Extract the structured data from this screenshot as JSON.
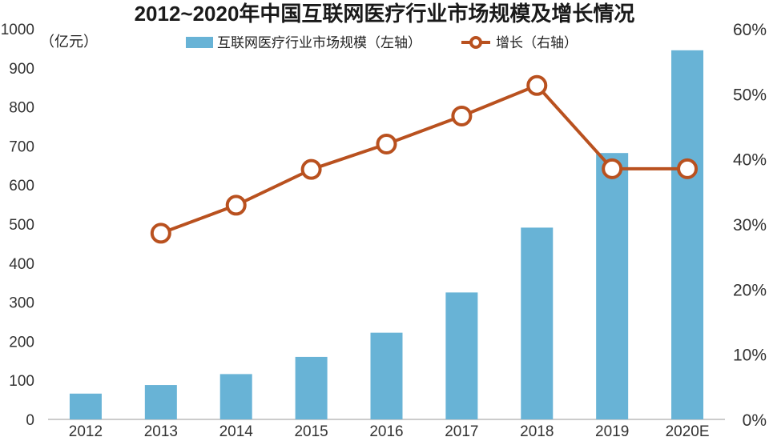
{
  "chart_data": {
    "type": "bar",
    "title": "2012~2020年中国互联网医疗行业市场规模及增长情况",
    "ylabel": "（亿元）",
    "categories": [
      "2012",
      "2013",
      "2014",
      "2015",
      "2016",
      "2017",
      "2018",
      "2019",
      "2020E"
    ],
    "ylim": [
      0,
      1000
    ],
    "yticks": [
      "0",
      "100",
      "200",
      "300",
      "400",
      "500",
      "600",
      "700",
      "800",
      "900",
      "1000"
    ],
    "y2lim": [
      0,
      60
    ],
    "y2ticks": [
      "0%",
      "10%",
      "20%",
      "30%",
      "40%",
      "50%",
      "60%"
    ],
    "grid": false,
    "legend_position": "top-center",
    "series": [
      {
        "name": "互联网医疗行业市场规模（左轴）",
        "type": "bar",
        "axis": "left",
        "color": "#68b3d6",
        "values": [
          66,
          88,
          116,
          160,
          222,
          325,
          491,
          682,
          945
        ]
      },
      {
        "name": "增长（右轴）",
        "type": "line",
        "axis": "right",
        "color": "#b9511f",
        "values": [
          null,
          28.6,
          32.9,
          38.4,
          42.3,
          46.6,
          51.3,
          38.5,
          38.5
        ]
      }
    ]
  }
}
